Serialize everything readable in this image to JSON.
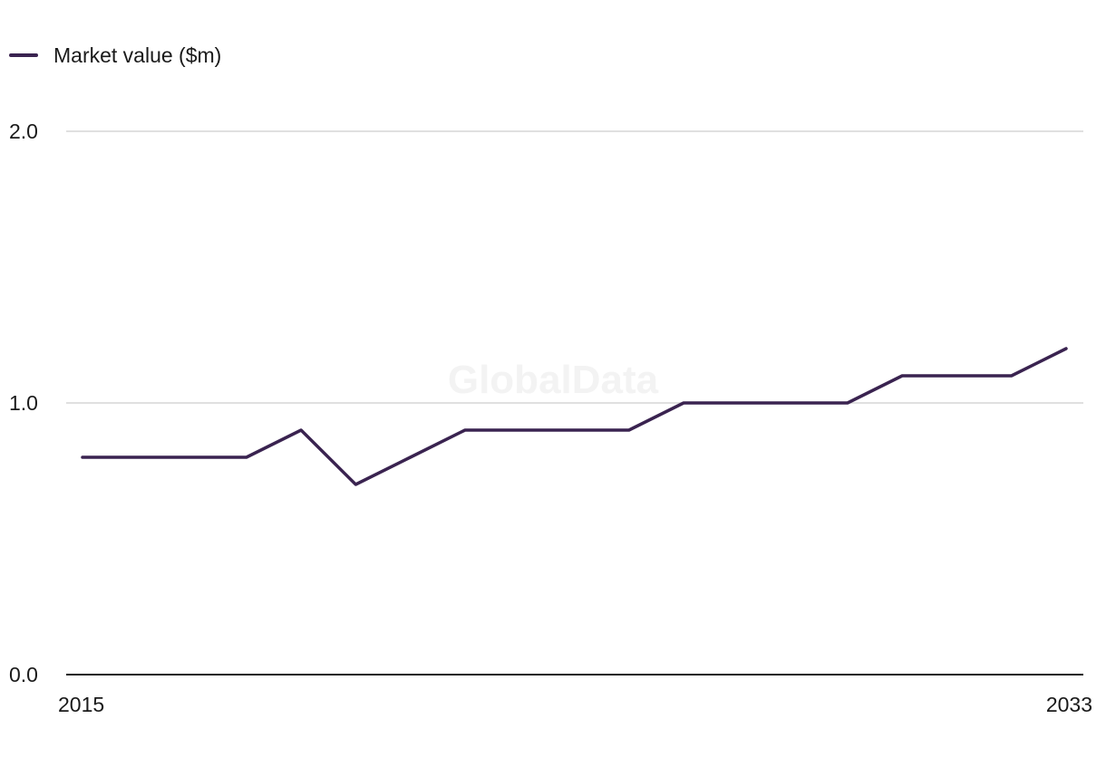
{
  "legend": {
    "label": "Market value ($m)",
    "color": "#3a2350"
  },
  "watermark": "GlobalData",
  "chart_data": {
    "type": "line",
    "title": "",
    "xlabel": "",
    "ylabel": "",
    "x": [
      2015,
      2016,
      2017,
      2018,
      2019,
      2020,
      2021,
      2022,
      2023,
      2024,
      2025,
      2026,
      2027,
      2028,
      2029,
      2030,
      2031,
      2032,
      2033
    ],
    "x_tick_labels": [
      "2015",
      "2033"
    ],
    "ylim": [
      0,
      2
    ],
    "y_tick_labels": [
      "0.0",
      "1.0",
      "2.0"
    ],
    "grid": true,
    "legend_position": "top-left",
    "series": [
      {
        "name": "Market value ($m)",
        "color": "#3a2350",
        "values": [
          0.8,
          0.8,
          0.8,
          0.8,
          0.9,
          0.7,
          0.8,
          0.9,
          0.9,
          0.9,
          0.9,
          1.0,
          1.0,
          1.0,
          1.0,
          1.1,
          1.1,
          1.1,
          1.2
        ]
      }
    ]
  }
}
